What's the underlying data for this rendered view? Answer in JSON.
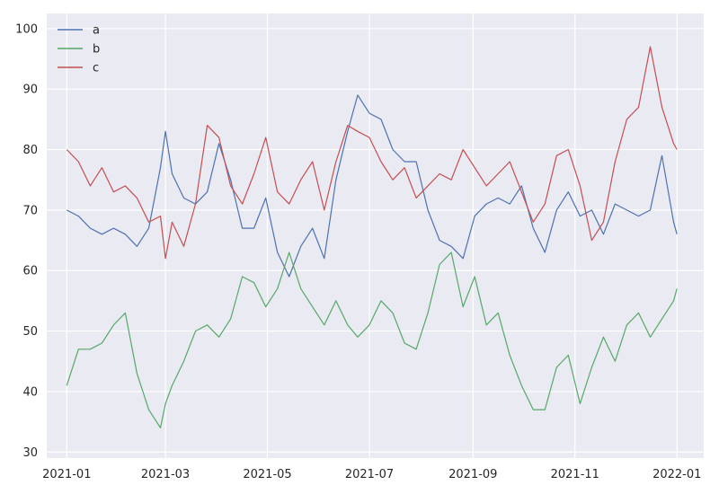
{
  "chart_data": {
    "type": "line",
    "title": "",
    "xlabel": "",
    "ylabel": "",
    "x_type": "date",
    "x_range": [
      "2020-12-20",
      "2022-01-17"
    ],
    "x_ticks": [
      "2021-01-01",
      "2021-03-01",
      "2021-05-01",
      "2021-07-01",
      "2021-09-01",
      "2021-11-01",
      "2022-01-01"
    ],
    "x_tick_labels": [
      "2021-01",
      "2021-03",
      "2021-05",
      "2021-07",
      "2021-09",
      "2021-11",
      "2022-01"
    ],
    "ylim": [
      29,
      102.5
    ],
    "y_ticks": [
      30,
      40,
      50,
      60,
      70,
      80,
      90,
      100
    ],
    "y_tick_labels": [
      "30",
      "40",
      "50",
      "60",
      "70",
      "80",
      "90",
      "100"
    ],
    "grid": true,
    "background": "#eaeaf2",
    "grid_color": "#ffffff",
    "legend_position": "top-left",
    "series": [
      {
        "name": "a",
        "color": "#4c72b0",
        "points": [
          [
            "2021-01-01",
            70
          ],
          [
            "2021-01-08",
            69
          ],
          [
            "2021-01-15",
            67
          ],
          [
            "2021-01-22",
            66
          ],
          [
            "2021-01-29",
            67
          ],
          [
            "2021-02-05",
            66
          ],
          [
            "2021-02-12",
            64
          ],
          [
            "2021-02-19",
            67
          ],
          [
            "2021-02-26",
            77
          ],
          [
            "2021-03-01",
            83
          ],
          [
            "2021-03-05",
            76
          ],
          [
            "2021-03-12",
            72
          ],
          [
            "2021-03-19",
            71
          ],
          [
            "2021-03-26",
            73
          ],
          [
            "2021-04-02",
            81
          ],
          [
            "2021-04-09",
            75
          ],
          [
            "2021-04-16",
            67
          ],
          [
            "2021-04-23",
            67
          ],
          [
            "2021-04-30",
            72
          ],
          [
            "2021-05-07",
            63
          ],
          [
            "2021-05-14",
            59
          ],
          [
            "2021-05-21",
            64
          ],
          [
            "2021-05-28",
            67
          ],
          [
            "2021-06-04",
            62
          ],
          [
            "2021-06-11",
            75
          ],
          [
            "2021-06-18",
            83
          ],
          [
            "2021-06-24",
            89
          ],
          [
            "2021-07-01",
            86
          ],
          [
            "2021-07-08",
            85
          ],
          [
            "2021-07-15",
            80
          ],
          [
            "2021-07-22",
            78
          ],
          [
            "2021-07-29",
            78
          ],
          [
            "2021-08-05",
            70
          ],
          [
            "2021-08-12",
            65
          ],
          [
            "2021-08-19",
            64
          ],
          [
            "2021-08-26",
            62
          ],
          [
            "2021-09-02",
            69
          ],
          [
            "2021-09-09",
            71
          ],
          [
            "2021-09-16",
            72
          ],
          [
            "2021-09-23",
            71
          ],
          [
            "2021-09-30",
            74
          ],
          [
            "2021-10-07",
            67
          ],
          [
            "2021-10-14",
            63
          ],
          [
            "2021-10-21",
            70
          ],
          [
            "2021-10-28",
            73
          ],
          [
            "2021-11-04",
            69
          ],
          [
            "2021-11-11",
            70
          ],
          [
            "2021-11-18",
            66
          ],
          [
            "2021-11-25",
            71
          ],
          [
            "2021-12-02",
            70
          ],
          [
            "2021-12-09",
            69
          ],
          [
            "2021-12-16",
            70
          ],
          [
            "2021-12-23",
            79
          ],
          [
            "2021-12-30",
            68
          ],
          [
            "2022-01-01",
            66
          ]
        ]
      },
      {
        "name": "b",
        "color": "#55a868",
        "points": [
          [
            "2021-01-01",
            41
          ],
          [
            "2021-01-08",
            47
          ],
          [
            "2021-01-15",
            47
          ],
          [
            "2021-01-22",
            48
          ],
          [
            "2021-01-29",
            51
          ],
          [
            "2021-02-05",
            53
          ],
          [
            "2021-02-12",
            43
          ],
          [
            "2021-02-19",
            37
          ],
          [
            "2021-02-26",
            34
          ],
          [
            "2021-03-01",
            38
          ],
          [
            "2021-03-05",
            41
          ],
          [
            "2021-03-12",
            45
          ],
          [
            "2021-03-19",
            50
          ],
          [
            "2021-03-26",
            51
          ],
          [
            "2021-04-02",
            49
          ],
          [
            "2021-04-09",
            52
          ],
          [
            "2021-04-16",
            59
          ],
          [
            "2021-04-23",
            58
          ],
          [
            "2021-04-30",
            54
          ],
          [
            "2021-05-07",
            57
          ],
          [
            "2021-05-14",
            63
          ],
          [
            "2021-05-21",
            57
          ],
          [
            "2021-05-28",
            54
          ],
          [
            "2021-06-04",
            51
          ],
          [
            "2021-06-11",
            55
          ],
          [
            "2021-06-18",
            51
          ],
          [
            "2021-06-24",
            49
          ],
          [
            "2021-07-01",
            51
          ],
          [
            "2021-07-08",
            55
          ],
          [
            "2021-07-15",
            53
          ],
          [
            "2021-07-22",
            48
          ],
          [
            "2021-07-29",
            47
          ],
          [
            "2021-08-05",
            53
          ],
          [
            "2021-08-12",
            61
          ],
          [
            "2021-08-19",
            63
          ],
          [
            "2021-08-26",
            54
          ],
          [
            "2021-09-02",
            59
          ],
          [
            "2021-09-09",
            51
          ],
          [
            "2021-09-16",
            53
          ],
          [
            "2021-09-23",
            46
          ],
          [
            "2021-09-30",
            41
          ],
          [
            "2021-10-07",
            37
          ],
          [
            "2021-10-14",
            37
          ],
          [
            "2021-10-21",
            44
          ],
          [
            "2021-10-28",
            46
          ],
          [
            "2021-11-04",
            38
          ],
          [
            "2021-11-11",
            44
          ],
          [
            "2021-11-18",
            49
          ],
          [
            "2021-11-25",
            45
          ],
          [
            "2021-12-02",
            51
          ],
          [
            "2021-12-09",
            53
          ],
          [
            "2021-12-16",
            49
          ],
          [
            "2021-12-23",
            52
          ],
          [
            "2021-12-30",
            55
          ],
          [
            "2022-01-01",
            57
          ]
        ]
      },
      {
        "name": "c",
        "color": "#c44e52",
        "points": [
          [
            "2021-01-01",
            80
          ],
          [
            "2021-01-08",
            78
          ],
          [
            "2021-01-15",
            74
          ],
          [
            "2021-01-22",
            77
          ],
          [
            "2021-01-29",
            73
          ],
          [
            "2021-02-05",
            74
          ],
          [
            "2021-02-12",
            72
          ],
          [
            "2021-02-19",
            68
          ],
          [
            "2021-02-26",
            69
          ],
          [
            "2021-03-01",
            62
          ],
          [
            "2021-03-05",
            68
          ],
          [
            "2021-03-12",
            64
          ],
          [
            "2021-03-19",
            71
          ],
          [
            "2021-03-26",
            84
          ],
          [
            "2021-04-02",
            82
          ],
          [
            "2021-04-09",
            74
          ],
          [
            "2021-04-16",
            71
          ],
          [
            "2021-04-23",
            76
          ],
          [
            "2021-04-30",
            82
          ],
          [
            "2021-05-07",
            73
          ],
          [
            "2021-05-14",
            71
          ],
          [
            "2021-05-21",
            75
          ],
          [
            "2021-05-28",
            78
          ],
          [
            "2021-06-04",
            70
          ],
          [
            "2021-06-11",
            78
          ],
          [
            "2021-06-18",
            84
          ],
          [
            "2021-06-24",
            83
          ],
          [
            "2021-07-01",
            82
          ],
          [
            "2021-07-08",
            78
          ],
          [
            "2021-07-15",
            75
          ],
          [
            "2021-07-22",
            77
          ],
          [
            "2021-07-29",
            72
          ],
          [
            "2021-08-05",
            74
          ],
          [
            "2021-08-12",
            76
          ],
          [
            "2021-08-19",
            75
          ],
          [
            "2021-08-26",
            80
          ],
          [
            "2021-09-02",
            77
          ],
          [
            "2021-09-09",
            74
          ],
          [
            "2021-09-16",
            76
          ],
          [
            "2021-09-23",
            78
          ],
          [
            "2021-09-30",
            73
          ],
          [
            "2021-10-07",
            68
          ],
          [
            "2021-10-14",
            71
          ],
          [
            "2021-10-21",
            79
          ],
          [
            "2021-10-28",
            80
          ],
          [
            "2021-11-04",
            74
          ],
          [
            "2021-11-11",
            65
          ],
          [
            "2021-11-18",
            68
          ],
          [
            "2021-11-25",
            78
          ],
          [
            "2021-12-02",
            85
          ],
          [
            "2021-12-09",
            87
          ],
          [
            "2021-12-16",
            97
          ],
          [
            "2021-12-23",
            87
          ],
          [
            "2021-12-30",
            81
          ],
          [
            "2022-01-01",
            80
          ]
        ]
      }
    ]
  }
}
